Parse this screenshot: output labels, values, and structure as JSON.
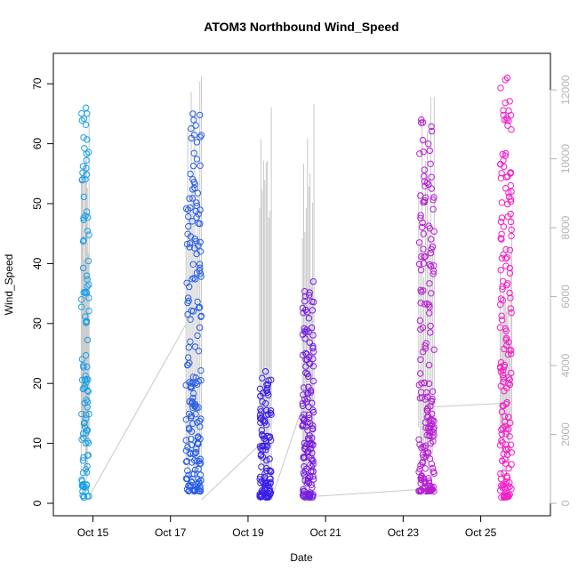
{
  "chart_data": {
    "type": "scatter",
    "title": "ATOM3 Northbound Wind_Speed",
    "xlabel": "Date",
    "ylabel": "Wind_Speed",
    "x_unit": "day of October",
    "xlim": [
      14.3,
      26.5
    ],
    "ylim": [
      0,
      73
    ],
    "y2lim": [
      0,
      12700
    ],
    "x_ticks": [
      15,
      17,
      19,
      21,
      23,
      25
    ],
    "x_tick_labels": [
      "Oct 15",
      "Oct 17",
      "Oct 19",
      "Oct 21",
      "Oct 23",
      "Oct 25"
    ],
    "y_ticks": [
      0,
      10,
      20,
      30,
      40,
      50,
      60,
      70
    ],
    "y2_ticks": [
      0,
      2000,
      4000,
      6000,
      8000,
      10000,
      12000
    ],
    "grid": false,
    "legend": "none",
    "colors": {
      "line": "#c8c8c8",
      "y2_axis": "#b4b4b4",
      "axis": "#000000",
      "gradient_start": "#1a9fe8",
      "gradient_mid": "#3a1fe8",
      "gradient_end": "#f21ec8"
    },
    "series": [
      {
        "kind": "points",
        "axis": "left",
        "clusters": [
          {
            "x_range": [
              14.7,
              14.9
            ],
            "y_min": 1,
            "y_max": 66,
            "count": 110
          },
          {
            "x_range": [
              17.4,
              17.8
            ],
            "y_min": 2,
            "y_max": 65,
            "count": 190
          },
          {
            "x_range": [
              19.3,
              19.6
            ],
            "y_min": 1,
            "y_max": 22,
            "count": 110
          },
          {
            "x_range": [
              20.4,
              20.7
            ],
            "y_min": 1,
            "y_max": 37,
            "count": 150
          },
          {
            "x_range": [
              23.4,
              23.8
            ],
            "y_min": 2,
            "y_max": 64,
            "count": 180
          },
          {
            "x_range": [
              25.5,
              25.8
            ],
            "y_min": 1,
            "y_max": 71,
            "count": 170
          }
        ]
      },
      {
        "kind": "line",
        "axis": "right",
        "bridges": [
          {
            "x": [
              14.9,
              17.4
            ],
            "y": [
              200,
              5200
            ]
          },
          {
            "x": [
              17.8,
              19.3
            ],
            "y": [
              100,
              1700
            ]
          },
          {
            "x": [
              19.6,
              20.4
            ],
            "y": [
              100,
              2800
            ]
          },
          {
            "x": [
              20.7,
              23.4
            ],
            "y": [
              200,
              400
            ]
          },
          {
            "x": [
              23.8,
              25.5
            ],
            "y": [
              2800,
              2900
            ]
          }
        ],
        "peaks": [
          {
            "x_range": [
              14.7,
              14.9
            ],
            "y_max": 11300
          },
          {
            "x_range": [
              17.4,
              17.8
            ],
            "y_max": 12400
          },
          {
            "x_range": [
              19.3,
              19.6
            ],
            "y_max": 11500
          },
          {
            "x_range": [
              20.4,
              20.7
            ],
            "y_max": 11600
          },
          {
            "x_range": [
              23.4,
              23.8
            ],
            "y_max": 11800
          },
          {
            "x_range": [
              25.5,
              25.8
            ],
            "y_max": 8500
          }
        ]
      }
    ]
  }
}
